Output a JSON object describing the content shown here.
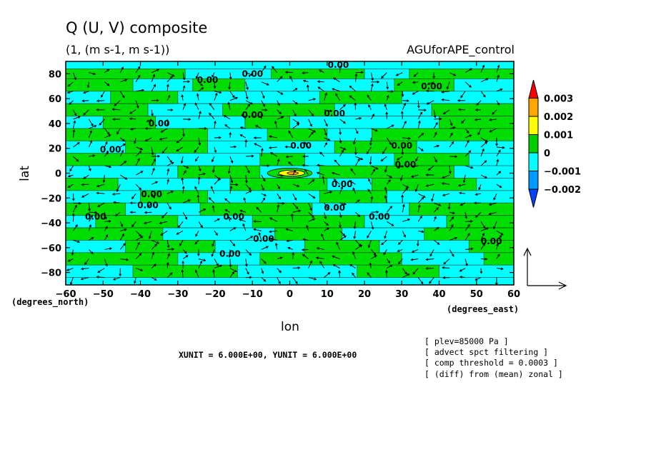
{
  "chart_data": {
    "type": "heatmap",
    "title": "Q (U, V) composite",
    "subtitle": "(1, (m s-1, m s-1))",
    "experiment": "AGUforAPE_control",
    "xlabel": "lon",
    "ylabel": "lat",
    "x_unit_label": "(degrees_east)",
    "y_unit_label": "(degrees_north)",
    "xlim": [
      -60,
      60
    ],
    "ylim": [
      -90,
      90
    ],
    "x_ticks": [
      -60,
      -50,
      -40,
      -30,
      -20,
      -10,
      0,
      10,
      20,
      30,
      40,
      50,
      60
    ],
    "y_ticks": [
      -80,
      -60,
      -40,
      -20,
      0,
      20,
      40,
      60,
      80
    ],
    "contour_label": "0.00",
    "contour_labels": [
      {
        "x": -22,
        "y": 75,
        "text": "0.00"
      },
      {
        "x": -10,
        "y": 80,
        "text": "0.00"
      },
      {
        "x": 13,
        "y": 87,
        "text": "0.00"
      },
      {
        "x": 38,
        "y": 70,
        "text": "0.00"
      },
      {
        "x": -35,
        "y": 40,
        "text": "0.00"
      },
      {
        "x": -10,
        "y": 47,
        "text": "0.00"
      },
      {
        "x": 12,
        "y": 48,
        "text": "0.00"
      },
      {
        "x": 3,
        "y": 22,
        "text": "0.00"
      },
      {
        "x": 30,
        "y": 22,
        "text": "0.00"
      },
      {
        "x": -48,
        "y": 19,
        "text": "0.00"
      },
      {
        "x": 31,
        "y": 7,
        "text": "0.00"
      },
      {
        "x": 14,
        "y": -9,
        "text": "0.00"
      },
      {
        "x": -37,
        "y": -17,
        "text": "0.00"
      },
      {
        "x": -38,
        "y": -26,
        "text": "0.00"
      },
      {
        "x": -52,
        "y": -35,
        "text": "0.00"
      },
      {
        "x": -15,
        "y": -35,
        "text": "0.00"
      },
      {
        "x": 12,
        "y": -28,
        "text": "0.00"
      },
      {
        "x": 24,
        "y": -35,
        "text": "0.00"
      },
      {
        "x": -7,
        "y": -53,
        "text": "0.00"
      },
      {
        "x": -16,
        "y": -65,
        "text": "0.00"
      },
      {
        "x": 54,
        "y": -55,
        "text": "0.00"
      }
    ],
    "colorbar": {
      "levels": [
        "0.003",
        "0.002",
        "0.001",
        "0",
        "-0.001",
        "-0.002"
      ],
      "colors": [
        "#ff0000",
        "#ffa500",
        "#ffff00",
        "#00cc00",
        "#00ffff",
        "#0099ff",
        "#0044ff"
      ]
    },
    "field_colors": {
      "positive": "#00dd00",
      "negative": "#00ffff",
      "high": "#ffff00",
      "higher": "#ffa500"
    },
    "xunit_text": "XUNIT = 6.000E+00, YUNIT = 6.000E+00",
    "notes": [
      "[ plev=85000 Pa ]",
      "[ advect spct filtering ]",
      "[ comp threshold = 0.0003 ]",
      "[ (diff) from (mean) zonal ]"
    ],
    "bands": [
      {
        "y0": 90,
        "y1": 84,
        "segs": [
          [
            -60,
            60,
            "negative"
          ]
        ]
      },
      {
        "y0": 84,
        "y1": 76,
        "segs": [
          [
            -60,
            -28,
            "positive"
          ],
          [
            -28,
            -5,
            "negative"
          ],
          [
            -5,
            20,
            "positive"
          ],
          [
            20,
            32,
            "negative"
          ],
          [
            32,
            60,
            "positive"
          ]
        ]
      },
      {
        "y0": 76,
        "y1": 66,
        "segs": [
          [
            -60,
            -42,
            "positive"
          ],
          [
            -42,
            -26,
            "negative"
          ],
          [
            -26,
            -12,
            "positive"
          ],
          [
            -12,
            28,
            "negative"
          ],
          [
            28,
            44,
            "positive"
          ],
          [
            44,
            60,
            "negative"
          ]
        ]
      },
      {
        "y0": 66,
        "y1": 56,
        "segs": [
          [
            -60,
            -48,
            "negative"
          ],
          [
            -48,
            -30,
            "positive"
          ],
          [
            -30,
            8,
            "negative"
          ],
          [
            8,
            30,
            "positive"
          ],
          [
            30,
            60,
            "negative"
          ]
        ]
      },
      {
        "y0": 56,
        "y1": 46,
        "segs": [
          [
            -60,
            -38,
            "positive"
          ],
          [
            -38,
            -18,
            "negative"
          ],
          [
            -18,
            12,
            "positive"
          ],
          [
            12,
            38,
            "negative"
          ],
          [
            38,
            60,
            "positive"
          ]
        ]
      },
      {
        "y0": 46,
        "y1": 36,
        "segs": [
          [
            -60,
            -50,
            "negative"
          ],
          [
            -50,
            -36,
            "positive"
          ],
          [
            -36,
            -12,
            "negative"
          ],
          [
            -12,
            0,
            "positive"
          ],
          [
            0,
            40,
            "negative"
          ],
          [
            40,
            60,
            "positive"
          ]
        ]
      },
      {
        "y0": 36,
        "y1": 26,
        "segs": [
          [
            -60,
            -22,
            "positive"
          ],
          [
            -22,
            -6,
            "negative"
          ],
          [
            -6,
            10,
            "positive"
          ],
          [
            10,
            22,
            "negative"
          ],
          [
            22,
            60,
            "positive"
          ]
        ]
      },
      {
        "y0": 26,
        "y1": 16,
        "segs": [
          [
            -60,
            -44,
            "negative"
          ],
          [
            -44,
            -22,
            "positive"
          ],
          [
            -22,
            12,
            "negative"
          ],
          [
            12,
            34,
            "positive"
          ],
          [
            34,
            60,
            "negative"
          ]
        ]
      },
      {
        "y0": 16,
        "y1": 6,
        "segs": [
          [
            -60,
            -36,
            "positive"
          ],
          [
            -36,
            -8,
            "negative"
          ],
          [
            -8,
            4,
            "positive"
          ],
          [
            4,
            28,
            "negative"
          ],
          [
            28,
            48,
            "positive"
          ],
          [
            48,
            60,
            "negative"
          ]
        ]
      },
      {
        "y0": 6,
        "y1": -4,
        "segs": [
          [
            -60,
            -30,
            "negative"
          ],
          [
            -30,
            -8,
            "positive"
          ],
          [
            -8,
            8,
            "negative"
          ],
          [
            8,
            44,
            "positive"
          ],
          [
            44,
            60,
            "negative"
          ]
        ]
      },
      {
        "y0": -4,
        "y1": -14,
        "segs": [
          [
            -60,
            -46,
            "positive"
          ],
          [
            -46,
            -16,
            "negative"
          ],
          [
            -16,
            10,
            "positive"
          ],
          [
            10,
            22,
            "negative"
          ],
          [
            22,
            50,
            "positive"
          ],
          [
            50,
            60,
            "negative"
          ]
        ]
      },
      {
        "y0": -14,
        "y1": -24,
        "segs": [
          [
            -60,
            -40,
            "negative"
          ],
          [
            -40,
            -22,
            "positive"
          ],
          [
            -22,
            8,
            "negative"
          ],
          [
            8,
            26,
            "positive"
          ],
          [
            26,
            60,
            "negative"
          ]
        ]
      },
      {
        "y0": -24,
        "y1": -34,
        "segs": [
          [
            -60,
            -44,
            "positive"
          ],
          [
            -44,
            -24,
            "negative"
          ],
          [
            -24,
            6,
            "positive"
          ],
          [
            6,
            32,
            "negative"
          ],
          [
            32,
            60,
            "positive"
          ]
        ]
      },
      {
        "y0": -34,
        "y1": -44,
        "segs": [
          [
            -60,
            -52,
            "negative"
          ],
          [
            -52,
            -30,
            "positive"
          ],
          [
            -30,
            -10,
            "negative"
          ],
          [
            -10,
            20,
            "positive"
          ],
          [
            20,
            42,
            "negative"
          ],
          [
            42,
            60,
            "positive"
          ]
        ]
      },
      {
        "y0": -44,
        "y1": -54,
        "segs": [
          [
            -60,
            -34,
            "positive"
          ],
          [
            -34,
            -4,
            "negative"
          ],
          [
            -4,
            14,
            "positive"
          ],
          [
            14,
            36,
            "negative"
          ],
          [
            36,
            60,
            "positive"
          ]
        ]
      },
      {
        "y0": -54,
        "y1": -64,
        "segs": [
          [
            -60,
            -44,
            "negative"
          ],
          [
            -44,
            -20,
            "positive"
          ],
          [
            -20,
            4,
            "negative"
          ],
          [
            4,
            24,
            "positive"
          ],
          [
            24,
            48,
            "negative"
          ],
          [
            48,
            60,
            "positive"
          ]
        ]
      },
      {
        "y0": -64,
        "y1": -74,
        "segs": [
          [
            -60,
            -30,
            "positive"
          ],
          [
            -30,
            -8,
            "negative"
          ],
          [
            -8,
            30,
            "positive"
          ],
          [
            30,
            52,
            "negative"
          ],
          [
            52,
            60,
            "positive"
          ]
        ]
      },
      {
        "y0": -74,
        "y1": -84,
        "segs": [
          [
            -60,
            -42,
            "negative"
          ],
          [
            -42,
            -14,
            "positive"
          ],
          [
            -14,
            18,
            "negative"
          ],
          [
            18,
            40,
            "positive"
          ],
          [
            40,
            60,
            "negative"
          ]
        ]
      },
      {
        "y0": -84,
        "y1": -90,
        "segs": [
          [
            -60,
            60,
            "negative"
          ]
        ]
      }
    ],
    "center_blob": [
      {
        "x": 0,
        "y": 0,
        "rx": 6,
        "ry": 4,
        "color": "positive"
      },
      {
        "x": 0.5,
        "y": 0,
        "rx": 3.5,
        "ry": 2.4,
        "color": "high"
      },
      {
        "x": 0.8,
        "y": 0,
        "rx": 1.5,
        "ry": 1.2,
        "color": "higher"
      }
    ]
  }
}
